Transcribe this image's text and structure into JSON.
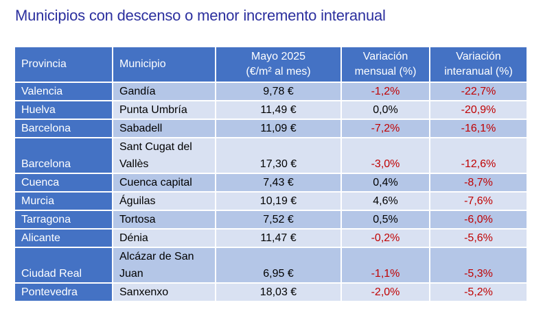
{
  "title": "Municipios con descenso o menor incremento interanual",
  "table": {
    "headers": {
      "provincia": "Provincia",
      "municipio": "Municipio",
      "precio_line1": "Mayo 2025",
      "precio_line2": "(€/m² al mes)",
      "mensual_line1": "Variación",
      "mensual_line2": "mensual (%)",
      "interanual_line1": "Variación",
      "interanual_line2": "interanual (%)"
    },
    "rows": [
      {
        "provincia": "Valencia",
        "municipio": "Gandía",
        "precio": "9,78 €",
        "mensual": "-1,2%",
        "interanual": "-22,7%"
      },
      {
        "provincia": "Huelva",
        "municipio": "Punta Umbría",
        "precio": "11,49 €",
        "mensual": "0,0%",
        "interanual": "-20,9%"
      },
      {
        "provincia": "Barcelona",
        "municipio": "Sabadell",
        "precio": "11,09 €",
        "mensual": "-7,2%",
        "interanual": "-16,1%"
      },
      {
        "provincia": "Barcelona",
        "municipio": "Sant Cugat del Vallès",
        "precio": "17,30 €",
        "mensual": "-3,0%",
        "interanual": "-12,6%"
      },
      {
        "provincia": "Cuenca",
        "municipio": "Cuenca capital",
        "precio": "7,43 €",
        "mensual": "0,4%",
        "interanual": "-8,7%"
      },
      {
        "provincia": "Murcia",
        "municipio": "Águilas",
        "precio": "10,19 €",
        "mensual": "4,6%",
        "interanual": "-7,6%"
      },
      {
        "provincia": "Tarragona",
        "municipio": "Tortosa",
        "precio": "7,52 €",
        "mensual": "0,5%",
        "interanual": "-6,0%"
      },
      {
        "provincia": "Alicante",
        "municipio": "Dénia",
        "precio": "11,47 €",
        "mensual": "-0,2%",
        "interanual": "-5,6%"
      },
      {
        "provincia": "Ciudad Real",
        "municipio": "Alcázar de San Juan",
        "precio": "6,95 €",
        "mensual": "-1,1%",
        "interanual": "-5,3%"
      },
      {
        "provincia": "Pontevedra",
        "municipio": "Sanxenxo",
        "precio": "18,03 €",
        "mensual": "-2,0%",
        "interanual": "-5,2%"
      }
    ]
  },
  "colors": {
    "title": "#2b2f9e",
    "header_bg": "#4472c4",
    "row_odd": "#b4c6e7",
    "row_even": "#d9e1f2",
    "negative": "#c00000"
  }
}
